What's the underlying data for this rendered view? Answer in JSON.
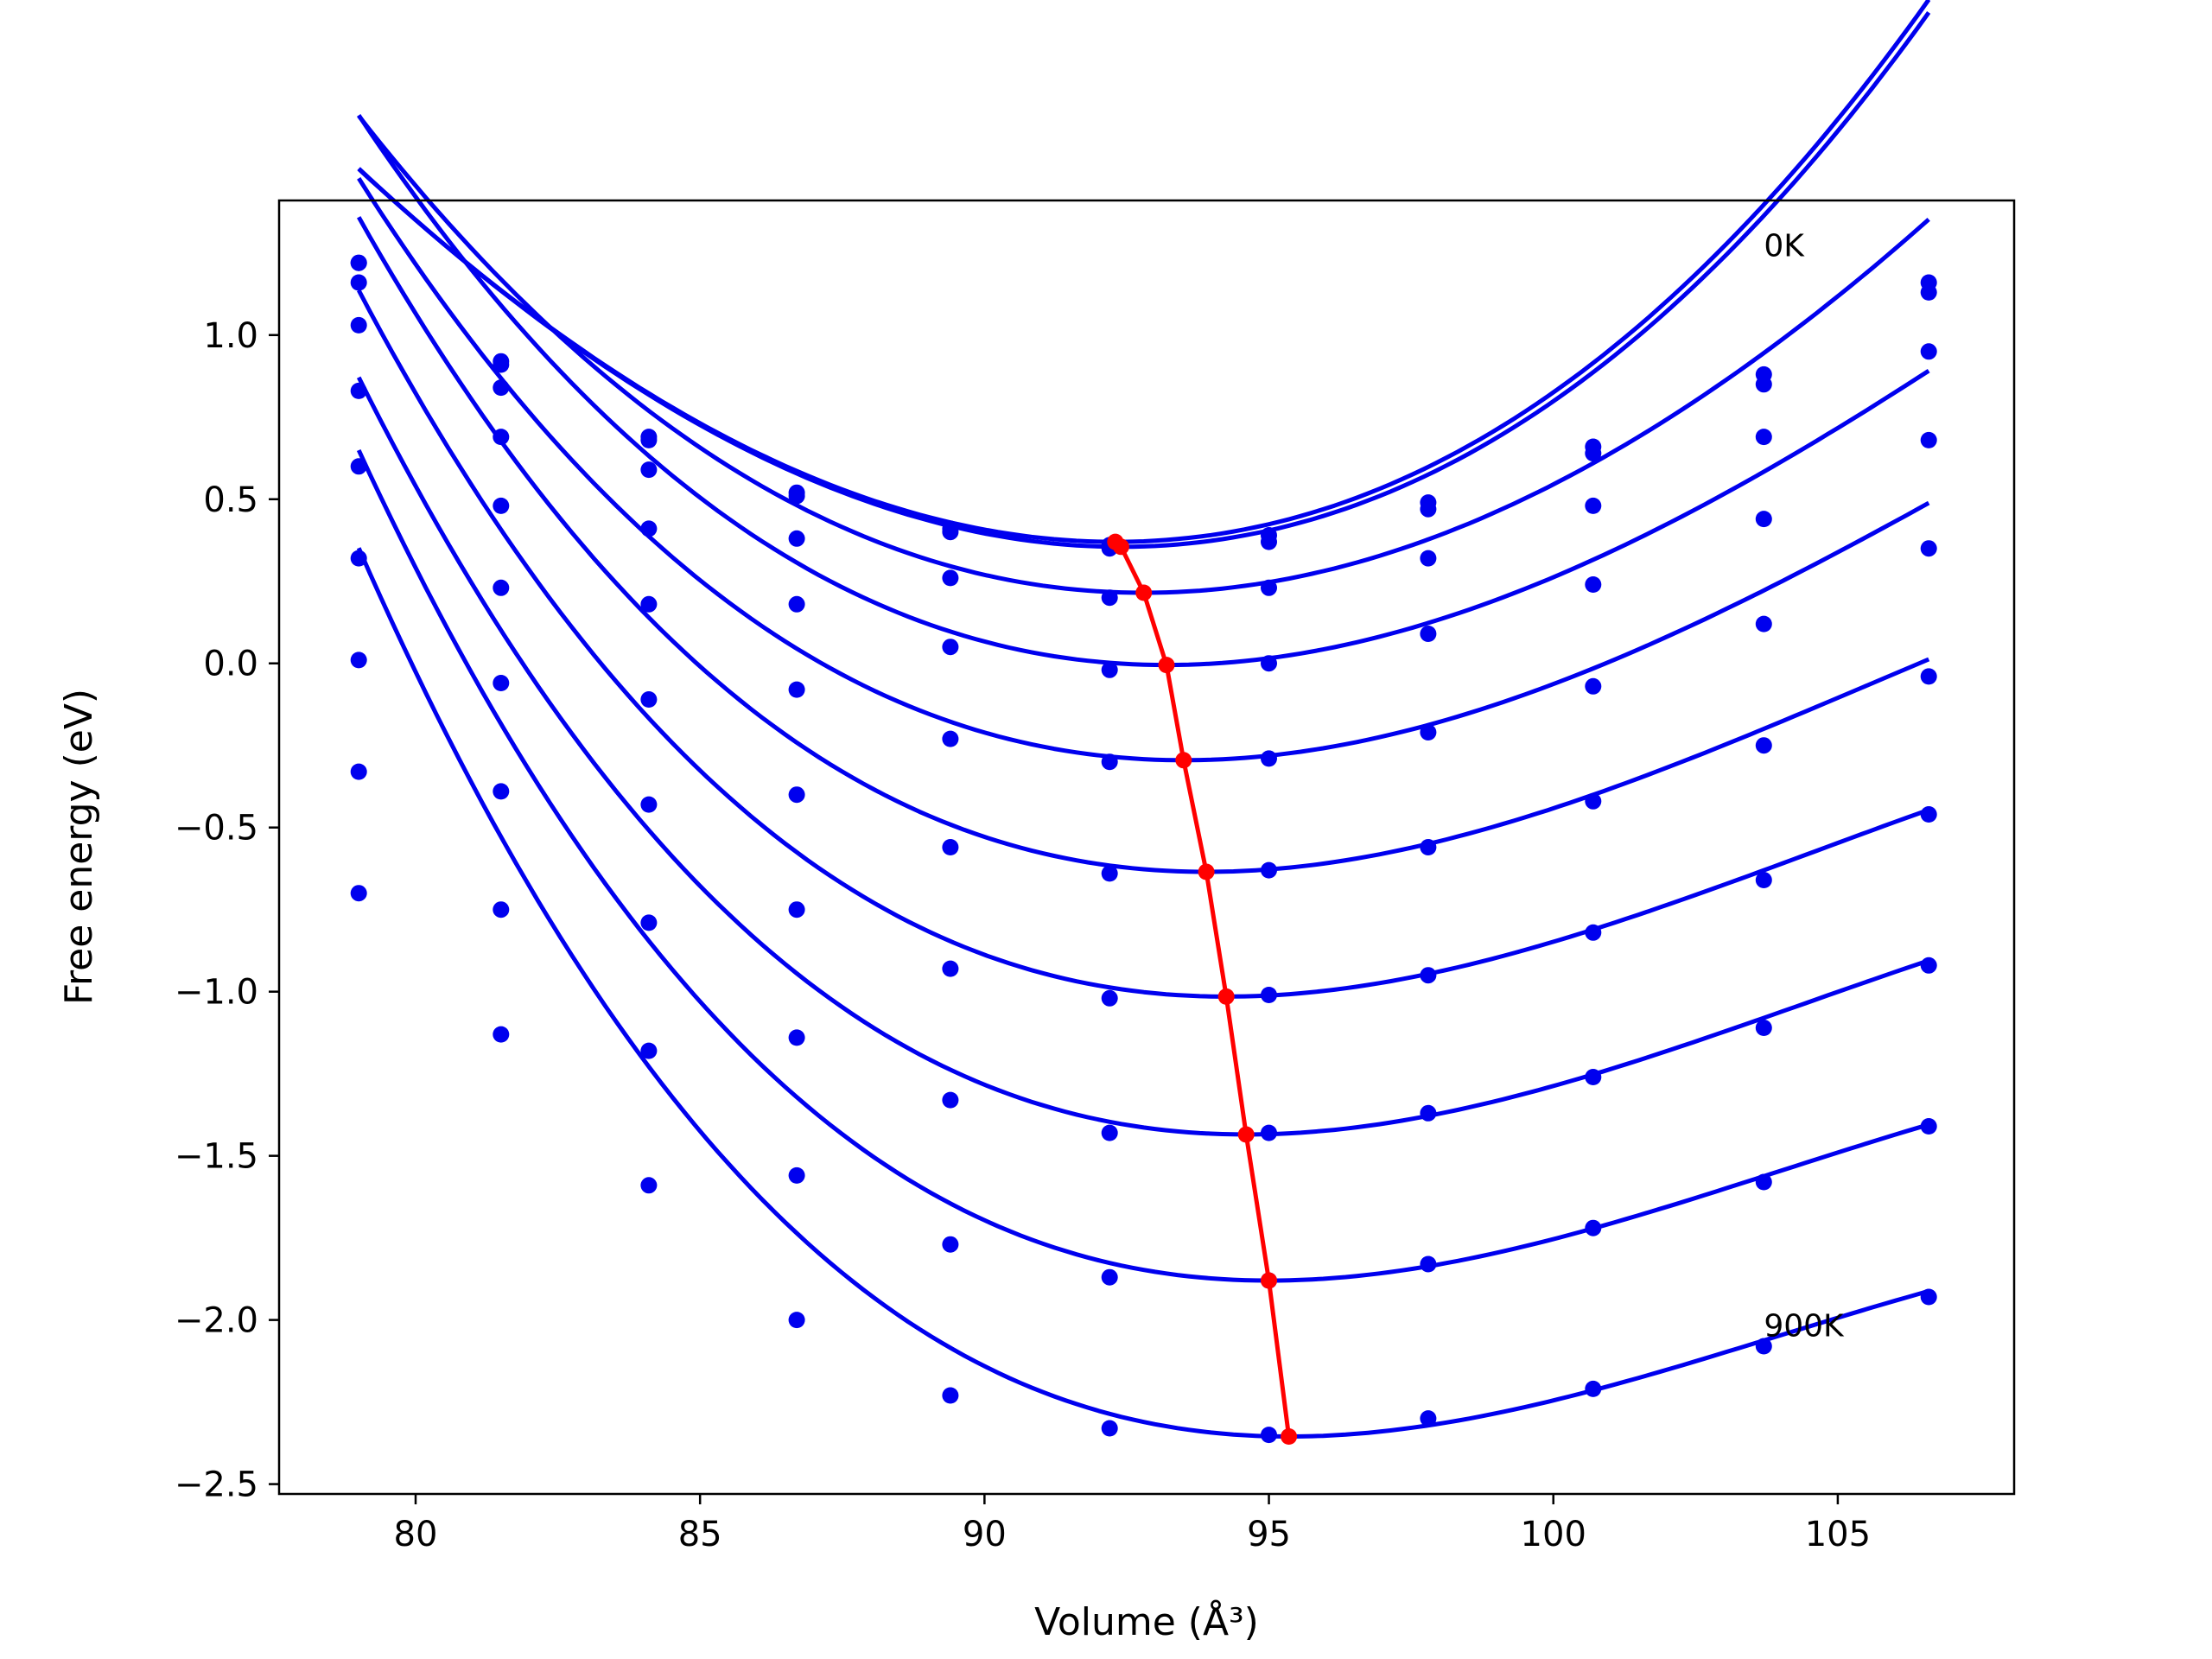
{
  "chart_data": {
    "type": "line",
    "title": "",
    "xlabel": "Volume (Å³)",
    "ylabel": "Free energy (eV)",
    "xlim": [
      77.6,
      108.1
    ],
    "ylim": [
      -2.53,
      1.41
    ],
    "xticks": [
      80,
      85,
      90,
      95,
      100,
      105
    ],
    "xtick_labels": [
      "80",
      "85",
      "90",
      "95",
      "100",
      "105"
    ],
    "yticks": [
      -2.5,
      -2.0,
      -1.5,
      -1.0,
      -0.5,
      0.0,
      0.5,
      1.0
    ],
    "ytick_labels": [
      "−2.5",
      "−2.0",
      "−1.5",
      "−1.0",
      "−0.5",
      "0.0",
      "0.5",
      "1.0"
    ],
    "grid": false,
    "legend": "none",
    "annotations": [
      {
        "text": "0K",
        "x": 103.7,
        "y": 1.24
      },
      {
        "text": "900K",
        "x": 103.7,
        "y": -2.05
      }
    ],
    "colors": {
      "fit_lines": "#0000ee",
      "data_points": "#0000ee",
      "minimum_path": "#ff0000"
    },
    "volumes": [
      79.0,
      81.5,
      84.1,
      86.7,
      89.4,
      92.2,
      95.0,
      97.8,
      100.7,
      103.7,
      106.6
    ],
    "isotherms": [
      {
        "points": [
          1.22,
          0.92,
          0.69,
          0.52,
          0.41,
          0.36,
          0.39,
          0.49,
          0.66,
          0.88,
          1.16
        ],
        "fit": {
          "a": 0.00722,
          "v0": 92.3,
          "f0": 0.37,
          "b": 6e-05
        }
      },
      {
        "points": [
          1.22,
          0.91,
          0.68,
          0.51,
          0.4,
          0.35,
          0.37,
          0.47,
          0.64,
          0.85,
          1.13
        ],
        "fit": {
          "a": 0.00722,
          "v0": 92.4,
          "f0": 0.355,
          "b": 6e-05
        }
      },
      {
        "points": [
          1.16,
          0.84,
          0.59,
          0.38,
          0.26,
          0.2,
          0.23,
          0.32,
          0.48,
          0.69,
          0.95
        ],
        "fit": {
          "a": 0.0068,
          "v0": 92.8,
          "f0": 0.215,
          "b": -6e-05
        }
      },
      {
        "points": [
          1.03,
          0.69,
          0.41,
          0.18,
          0.05,
          -0.02,
          0.0,
          0.09,
          0.24,
          0.44,
          0.68
        ],
        "fit": {
          "a": 0.0066,
          "v0": 93.2,
          "f0": -0.005,
          "b": -0.00012
        }
      },
      {
        "points": [
          0.83,
          0.48,
          0.18,
          -0.08,
          -0.23,
          -0.3,
          -0.29,
          -0.21,
          -0.07,
          0.12,
          0.35
        ],
        "fit": {
          "a": 0.0064,
          "v0": 93.5,
          "f0": -0.295,
          "b": -0.00014
        }
      },
      {
        "points": [
          0.6,
          0.23,
          -0.11,
          -0.4,
          -0.56,
          -0.64,
          -0.63,
          -0.56,
          -0.42,
          -0.25,
          -0.04
        ],
        "fit": {
          "a": 0.0063,
          "v0": 93.9,
          "f0": -0.635,
          "b": -0.00018
        }
      },
      {
        "points": [
          0.32,
          -0.06,
          -0.43,
          -0.75,
          -0.93,
          -1.02,
          -1.01,
          -0.95,
          -0.82,
          -0.66,
          -0.46
        ],
        "fit": {
          "a": 0.0062,
          "v0": 94.25,
          "f0": -1.015,
          "b": -0.0002
        }
      },
      {
        "points": [
          0.01,
          -0.39,
          -0.79,
          -1.14,
          -1.33,
          -1.43,
          -1.43,
          -1.37,
          -1.26,
          -1.11,
          -0.92
        ],
        "fit": {
          "a": 0.0062,
          "v0": 94.6,
          "f0": -1.435,
          "b": -0.00021
        }
      },
      {
        "points": [
          -0.33,
          -0.75,
          -1.18,
          -1.56,
          -1.77,
          -1.87,
          -1.88,
          -1.83,
          -1.72,
          -1.58,
          -1.41
        ],
        "fit": {
          "a": 0.0062,
          "v0": 95.0,
          "f0": -1.88,
          "b": -0.00023
        }
      },
      {
        "points": [
          -0.7,
          -1.13,
          -1.59,
          -2.0,
          -2.23,
          -2.33,
          -2.35,
          -2.3,
          -2.21,
          -2.08,
          -1.93
        ],
        "fit": {
          "a": 0.0062,
          "v0": 95.35,
          "f0": -2.355,
          "b": -0.00024
        }
      }
    ],
    "minimum_path": {
      "x": [
        92.3,
        92.4,
        92.8,
        93.2,
        93.5,
        93.9,
        94.25,
        94.6,
        95.0,
        95.35
      ],
      "y": [
        0.37,
        0.355,
        0.215,
        -0.005,
        -0.295,
        -0.635,
        -1.015,
        -1.435,
        -1.88,
        -2.355
      ]
    }
  }
}
